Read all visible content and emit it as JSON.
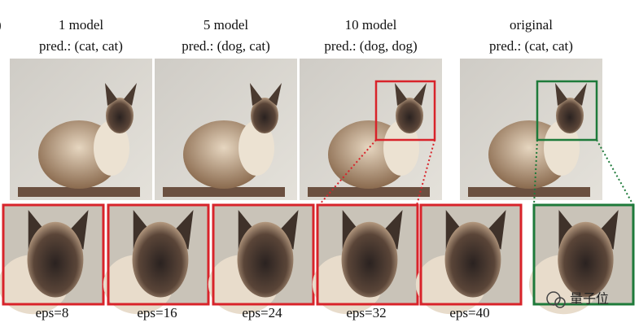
{
  "panel_label": ")",
  "columns": [
    {
      "title": "1 model",
      "prediction": "pred.: (cat, cat)"
    },
    {
      "title": "5 model",
      "prediction": "pred.: (dog, cat)"
    },
    {
      "title": "10 model",
      "prediction": "pred.: (dog, dog)"
    },
    {
      "title": "original",
      "prediction": "pred.: (cat, cat)"
    }
  ],
  "crops": [
    {
      "label": "eps=8"
    },
    {
      "label": "eps=16"
    },
    {
      "label": "eps=24"
    },
    {
      "label": "eps=32"
    },
    {
      "label": "eps=40"
    }
  ],
  "watermark": "量子位"
}
